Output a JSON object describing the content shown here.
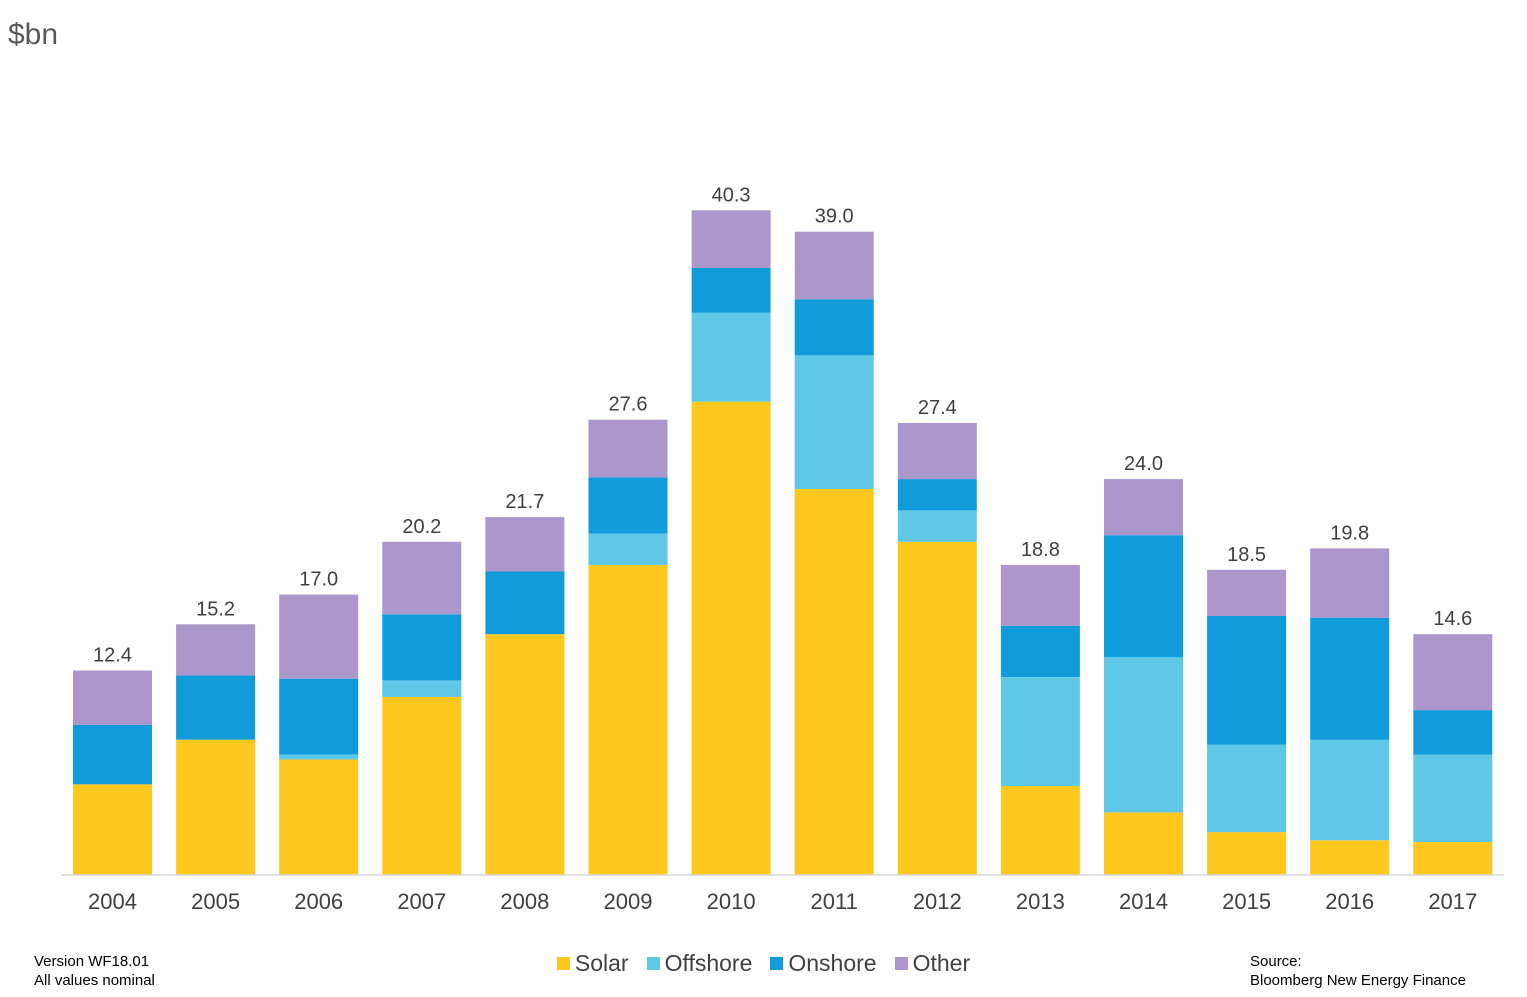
{
  "chart_data": {
    "type": "bar",
    "stacked": true,
    "ylabel": "$bn",
    "ylim": [
      0,
      48.5
    ],
    "grid": false,
    "legend_position": "bottom",
    "categories": [
      "2004",
      "2005",
      "2006",
      "2007",
      "2008",
      "2009",
      "2010",
      "2011",
      "2012",
      "2013",
      "2014",
      "2015",
      "2016",
      "2017"
    ],
    "totals": [
      "12.4",
      "15.2",
      "17.0",
      "20.2",
      "21.7",
      "27.6",
      "40.3",
      "39.0",
      "27.4",
      "18.8",
      "24.0",
      "18.5",
      "19.8",
      "14.6"
    ],
    "series": [
      {
        "name": "Solar",
        "color": "#FFC81E",
        "values": [
          5.5,
          8.2,
          7.0,
          10.8,
          14.6,
          18.8,
          28.7,
          23.4,
          20.2,
          5.4,
          3.8,
          2.6,
          2.1,
          2.0
        ]
      },
      {
        "name": "Offshore",
        "color": "#5EC8E6",
        "values": [
          0,
          0,
          0.3,
          1.0,
          0,
          1.9,
          5.4,
          8.1,
          1.9,
          6.6,
          9.4,
          5.3,
          6.1,
          5.3
        ]
      },
      {
        "name": "Onshore",
        "color": "#109CDA",
        "values": [
          3.6,
          3.9,
          4.6,
          4.0,
          3.8,
          3.4,
          2.7,
          3.4,
          1.9,
          3.1,
          7.4,
          7.8,
          7.4,
          2.7
        ]
      },
      {
        "name": "Other",
        "color": "#AB97CB",
        "values": [
          3.3,
          3.1,
          5.1,
          4.4,
          3.3,
          3.5,
          3.5,
          4.1,
          3.4,
          3.7,
          3.4,
          2.8,
          4.2,
          4.6
        ]
      }
    ]
  },
  "footer": {
    "version": "Version WF18.01",
    "note": "All values  nominal",
    "source_label": "Source:",
    "source": "Bloomberg  New Energy Finance"
  }
}
